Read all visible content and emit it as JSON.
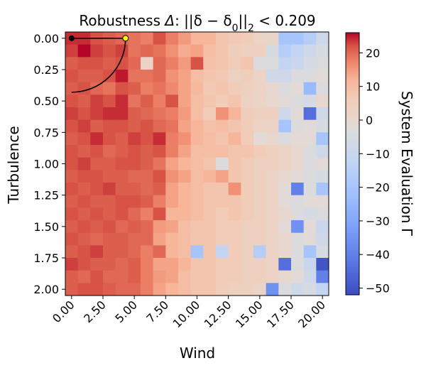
{
  "chart_data": {
    "type": "heatmap",
    "title": "Robustness $\\hat{\\Delta}: ||\\delta - \\delta_0||_2 < 0.209$",
    "title_parts": {
      "prefix": "Robustness ",
      "symbol": "Δ",
      "suffix": ": ||δ − δ",
      "sub": "0",
      "tail": "||",
      "sub2": "2",
      "bound": " < 0.209"
    },
    "xlabel": "Wind",
    "ylabel": "Turbulence",
    "colorbar_label": "System Evaluation Γ",
    "colormap": "coolwarm",
    "vmin": -52,
    "vmax": 26,
    "xlim": [
      0,
      20
    ],
    "ylim": [
      2.0,
      0.0
    ],
    "x_ticks": [
      "0.00",
      "2.50",
      "5.00",
      "7.50",
      "10.00",
      "12.50",
      "15.00",
      "17.50",
      "20.00"
    ],
    "y_ticks": [
      "0.00",
      "0.25",
      "0.50",
      "0.75",
      "1.00",
      "1.25",
      "1.50",
      "1.75",
      "2.00"
    ],
    "colorbar_ticks": [
      "20",
      "10",
      "0",
      "−10",
      "−20",
      "−30",
      "−40",
      "−50"
    ],
    "grid": false,
    "n_cols": 21,
    "n_rows": 21,
    "values": [
      [
        24,
        24,
        22,
        21,
        20,
        19,
        18,
        22,
        18,
        15,
        12,
        12,
        8,
        7,
        6,
        2,
        1,
        -20,
        -20,
        -16,
        -8
      ],
      [
        23,
        26,
        23,
        22,
        23,
        19,
        20,
        19,
        16,
        13,
        14,
        10,
        8,
        5,
        4,
        4,
        -6,
        -16,
        -12,
        -8,
        -6
      ],
      [
        21,
        22,
        22,
        21,
        22,
        20,
        2,
        20,
        18,
        15,
        22,
        9,
        8,
        6,
        8,
        -4,
        -4,
        -12,
        -10,
        -6,
        -4
      ],
      [
        22,
        21,
        21,
        22,
        25,
        19,
        19,
        20,
        16,
        14,
        10,
        8,
        7,
        3,
        5,
        2,
        -8,
        -8,
        -4,
        -4,
        -2
      ],
      [
        21,
        22,
        20,
        19,
        22,
        21,
        18,
        19,
        17,
        14,
        11,
        7,
        8,
        6,
        4,
        2,
        0,
        -4,
        -2,
        -24,
        -4
      ],
      [
        22,
        21,
        23,
        22,
        24,
        19,
        21,
        18,
        22,
        14,
        10,
        8,
        6,
        8,
        3,
        2,
        0,
        -2,
        -4,
        -6,
        0
      ],
      [
        23,
        22,
        23,
        24,
        24,
        21,
        20,
        19,
        18,
        15,
        10,
        6,
        16,
        12,
        5,
        4,
        4,
        -8,
        -2,
        -44,
        -8
      ],
      [
        22,
        23,
        21,
        22,
        22,
        21,
        22,
        20,
        19,
        14,
        12,
        9,
        10,
        8,
        6,
        2,
        2,
        -20,
        -4,
        -2,
        -6
      ],
      [
        21,
        22,
        24,
        22,
        21,
        23,
        22,
        24,
        18,
        16,
        12,
        10,
        8,
        12,
        6,
        -2,
        0,
        -4,
        -2,
        -2,
        -20
      ],
      [
        22,
        21,
        22,
        20,
        21,
        22,
        21,
        22,
        18,
        14,
        10,
        10,
        10,
        8,
        8,
        6,
        4,
        2,
        0,
        -4,
        -8
      ],
      [
        22,
        23,
        21,
        21,
        22,
        22,
        21,
        19,
        14,
        12,
        10,
        8,
        -4,
        8,
        6,
        4,
        4,
        2,
        0,
        -4,
        -2
      ],
      [
        21,
        22,
        22,
        21,
        21,
        20,
        20,
        22,
        16,
        14,
        10,
        12,
        14,
        8,
        6,
        4,
        2,
        0,
        -2,
        -4,
        -6
      ],
      [
        22,
        21,
        22,
        23,
        21,
        21,
        20,
        21,
        14,
        12,
        10,
        8,
        8,
        16,
        6,
        4,
        2,
        -2,
        0,
        -4,
        -20
      ],
      [
        21,
        22,
        21,
        21,
        22,
        22,
        21,
        18,
        14,
        12,
        10,
        8,
        8,
        8,
        6,
        4,
        2,
        -2,
        -4,
        -2,
        -6
      ],
      [
        22,
        21,
        22,
        21,
        22,
        20,
        18,
        22,
        12,
        12,
        10,
        8,
        6,
        8,
        6,
        4,
        2,
        0,
        -4,
        -6,
        -4
      ],
      [
        21,
        22,
        21,
        22,
        20,
        21,
        20,
        15,
        14,
        10,
        8,
        8,
        6,
        6,
        4,
        4,
        2,
        -2,
        -36,
        -2,
        -10
      ],
      [
        22,
        21,
        20,
        21,
        21,
        20,
        20,
        14,
        12,
        10,
        8,
        8,
        6,
        6,
        4,
        4,
        2,
        0,
        -4,
        -2,
        -8
      ],
      [
        21,
        22,
        23,
        21,
        21,
        20,
        18,
        20,
        12,
        10,
        -20,
        8,
        -12,
        6,
        4,
        -16,
        2,
        0,
        -4,
        -8,
        -6
      ],
      [
        23,
        22,
        21,
        21,
        20,
        21,
        18,
        14,
        14,
        12,
        8,
        8,
        6,
        6,
        4,
        4,
        2,
        -6,
        -4,
        -10,
        -16
      ],
      [
        21,
        20,
        22,
        20,
        20,
        21,
        18,
        15,
        14,
        10,
        8,
        8,
        6,
        6,
        4,
        4,
        2,
        0,
        -2,
        -8,
        -40
      ],
      [
        21,
        22,
        22,
        21,
        20,
        20,
        18,
        14,
        12,
        10,
        8,
        8,
        6,
        4,
        4,
        2,
        0,
        -4,
        -8,
        -6,
        -12
      ]
    ],
    "cell_overrides": [
      {
        "row": 18,
        "col": 17,
        "value": -44
      },
      {
        "row": 18,
        "col": 20,
        "value": -50
      },
      {
        "row": 19,
        "col": 18,
        "value": -2
      },
      {
        "row": 20,
        "col": 16,
        "value": -36
      },
      {
        "row": 17,
        "col": 19,
        "value": -20
      },
      {
        "row": 12,
        "col": 18,
        "value": -40
      },
      {
        "row": 13,
        "col": 20,
        "value": -2
      }
    ],
    "overlay": {
      "arc_center": [
        0.0,
        0.0
      ],
      "arc_radius_x": 4.3,
      "arc_radius_y": 0.43,
      "origin_marker_color": "#000000",
      "end_marker_color": "#ffff00"
    }
  }
}
